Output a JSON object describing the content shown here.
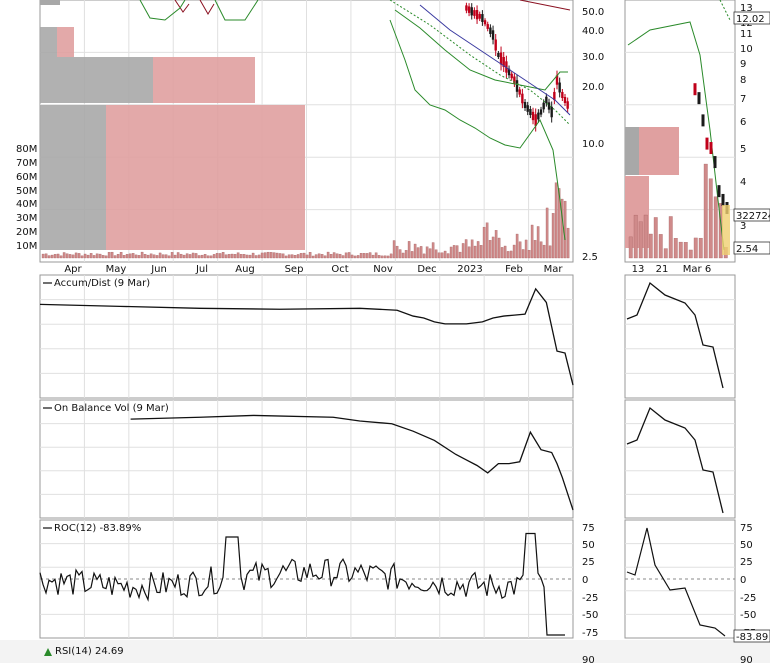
{
  "chart_data": [
    {
      "type": "candlestick",
      "panel": "price",
      "x_ticks": [
        "Apr",
        "May",
        "Jun",
        "Jul",
        "Aug",
        "Sep",
        "Oct",
        "Nov",
        "Dec",
        "2023",
        "Feb",
        "Mar"
      ],
      "y_ticks": [
        "50.0",
        "40.0",
        "30.0",
        "20.0",
        "10.0",
        "2.5"
      ],
      "y_scale": "log",
      "volume_ticks": [
        "80M",
        "70M",
        "60M",
        "50M",
        "40M",
        "30M",
        "20M",
        "10M"
      ],
      "price_path": [
        [
          0.8,
          8
        ],
        [
          0.83,
          18
        ],
        [
          0.85,
          35
        ],
        [
          0.86,
          55
        ],
        [
          0.87,
          62
        ],
        [
          0.88,
          72
        ],
        [
          0.89,
          80
        ],
        [
          0.9,
          92
        ],
        [
          0.91,
          105
        ],
        [
          0.92,
          112
        ],
        [
          0.93,
          120
        ],
        [
          0.94,
          112
        ],
        [
          0.95,
          100
        ],
        [
          0.96,
          112
        ],
        [
          0.97,
          80
        ],
        [
          0.98,
          95
        ],
        [
          0.99,
          105
        ],
        [
          1.0,
          160
        ],
        [
          1.02,
          200
        ],
        [
          1.04,
          230
        ],
        [
          1.06,
          255
        ]
      ],
      "zoom_x_ticks": [
        "13",
        "21",
        "Mar 6"
      ],
      "zoom_y_ticks": [
        "13",
        "12",
        "11",
        "10",
        "9",
        "8",
        "7",
        "6",
        "5",
        "4",
        "3"
      ],
      "zoom_price_labels": [
        "12.02",
        "322724",
        "2.54"
      ]
    },
    {
      "type": "line",
      "panel": "accum_dist",
      "title": "Accum/Dist (9 Mar)",
      "line": [
        [
          0,
          22
        ],
        [
          0.15,
          24
        ],
        [
          0.3,
          26
        ],
        [
          0.45,
          27
        ],
        [
          0.6,
          26
        ],
        [
          0.67,
          28
        ],
        [
          0.7,
          34
        ],
        [
          0.72,
          36
        ],
        [
          0.74,
          40
        ],
        [
          0.76,
          42
        ],
        [
          0.8,
          42
        ],
        [
          0.83,
          40
        ],
        [
          0.85,
          36
        ],
        [
          0.87,
          34
        ],
        [
          0.89,
          33
        ],
        [
          0.91,
          32
        ],
        [
          0.93,
          6
        ],
        [
          0.95,
          20
        ],
        [
          0.97,
          70
        ],
        [
          0.985,
          72
        ],
        [
          1.0,
          105
        ]
      ]
    },
    {
      "type": "line",
      "panel": "on_balance_vol",
      "title": "On Balance Vol (9 Mar)",
      "line": [
        [
          0.17,
          12
        ],
        [
          0.3,
          10
        ],
        [
          0.4,
          8
        ],
        [
          0.55,
          10
        ],
        [
          0.6,
          14
        ],
        [
          0.66,
          17
        ],
        [
          0.7,
          25
        ],
        [
          0.74,
          35
        ],
        [
          0.78,
          50
        ],
        [
          0.8,
          56
        ],
        [
          0.82,
          62
        ],
        [
          0.84,
          70
        ],
        [
          0.86,
          60
        ],
        [
          0.88,
          60
        ],
        [
          0.9,
          58
        ],
        [
          0.92,
          26
        ],
        [
          0.94,
          45
        ],
        [
          0.96,
          48
        ],
        [
          0.97,
          60
        ],
        [
          0.98,
          75
        ],
        [
          1.0,
          110
        ]
      ]
    },
    {
      "type": "line",
      "panel": "roc",
      "title": "ROC(12) -83.89%",
      "y_ticks": [
        "75",
        "50",
        "25",
        "0",
        "-25",
        "-50",
        "-75"
      ],
      "zoom_value_label": "-83.89"
    },
    {
      "type": "line",
      "panel": "rsi",
      "title": "RSI(14) 24.69",
      "y_ticks": [
        "90"
      ]
    }
  ],
  "colors": {
    "up": "#1a1a1a",
    "down": "#c0001a",
    "volume_bar": "#cf8a8a",
    "shade_gray": "#a8a8a8",
    "shade_red": "#e0a0a0",
    "ma_green": "#2a8a2a",
    "ma_blue": "#3a3aa0",
    "grid": "#e0e0e0"
  }
}
